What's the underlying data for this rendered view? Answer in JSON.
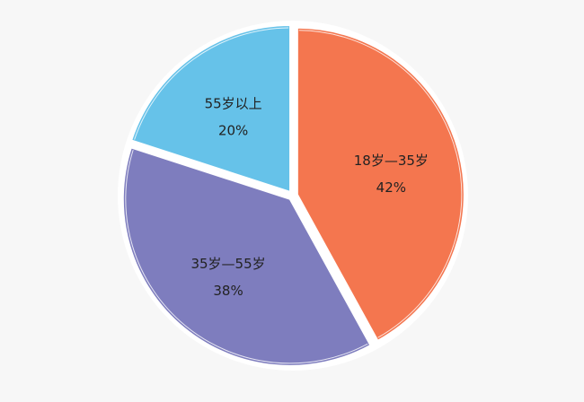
{
  "chart_data": {
    "type": "pie",
    "slices": [
      {
        "label": "18岁—35岁",
        "value": 42,
        "value_label": "42%",
        "color": "#f4764f"
      },
      {
        "label": "35岁—55岁",
        "value": 38,
        "value_label": "38%",
        "color": "#7e7dbe"
      },
      {
        "label": "55岁以上",
        "value": 20,
        "value_label": "20%",
        "color": "#66c2e9"
      }
    ],
    "start_angle_deg": 0,
    "direction": "clockwise",
    "exploded": true,
    "legend": "none",
    "background_color": "#f7f7f7"
  }
}
